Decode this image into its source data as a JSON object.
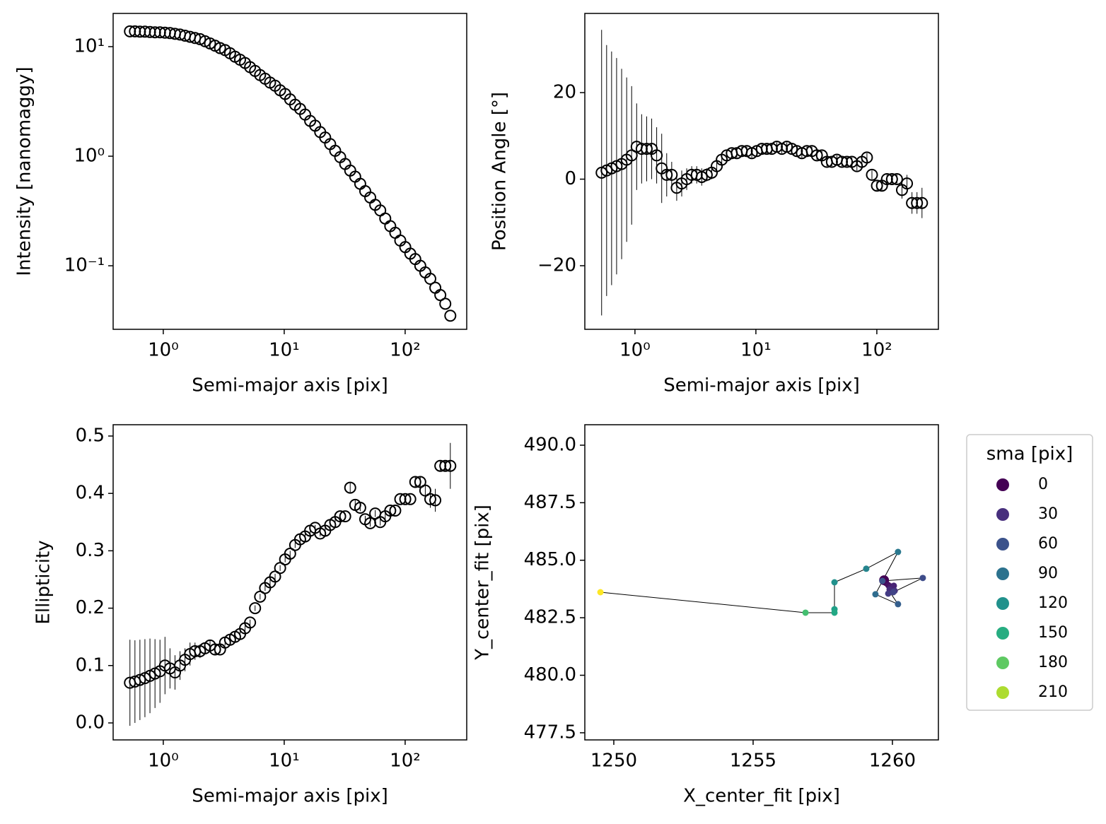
{
  "chart_data": [
    {
      "type": "errorbar",
      "xlabel": "Semi-major axis [pix]",
      "ylabel": "Intensity [nanomaggy]",
      "xscale": "log",
      "yscale": "log",
      "x": [
        0.53,
        0.583,
        0.641,
        0.705,
        0.776,
        0.854,
        0.939,
        1.033,
        1.136,
        1.25,
        1.375,
        1.512,
        1.664,
        1.83,
        2.013,
        2.214,
        2.436,
        2.679,
        2.947,
        3.242,
        3.566,
        3.923,
        4.315,
        4.747,
        5.221,
        5.743,
        6.318,
        6.95,
        7.645,
        8.409,
        9.25,
        10.175,
        11.193,
        12.312,
        13.543,
        14.898,
        16.387,
        18.026,
        19.829,
        21.812,
        23.993,
        26.392,
        29.032,
        31.935,
        35.128,
        38.641,
        42.505,
        46.756,
        51.431,
        56.575,
        62.232,
        68.455,
        75.301,
        82.831,
        91.114,
        100.225,
        110.248,
        121.273,
        133.4,
        146.74,
        161.414,
        177.555,
        195.311,
        214.842,
        236.326
      ],
      "values": [
        13.8,
        13.8,
        13.7,
        13.7,
        13.6,
        13.5,
        13.5,
        13.4,
        13.3,
        13.1,
        12.9,
        12.6,
        12.3,
        12.0,
        11.7,
        11.2,
        10.7,
        10.2,
        9.7,
        9.3,
        8.7,
        8.1,
        7.6,
        7.1,
        6.5,
        6.0,
        5.5,
        5.1,
        4.7,
        4.4,
        4.0,
        3.7,
        3.3,
        2.95,
        2.7,
        2.4,
        2.1,
        1.9,
        1.66,
        1.48,
        1.29,
        1.12,
        0.98,
        0.85,
        0.74,
        0.65,
        0.56,
        0.48,
        0.42,
        0.36,
        0.32,
        0.27,
        0.23,
        0.2,
        0.17,
        0.148,
        0.129,
        0.115,
        0.1,
        0.087,
        0.076,
        0.063,
        0.054,
        0.045,
        0.035
      ],
      "color": "#000000",
      "xlim": [
        0.385,
        323
      ],
      "ylim": [
        0.0263,
        20.1
      ],
      "xticks": [
        {
          "value": 1,
          "label": "10⁰"
        },
        {
          "value": 10,
          "label": "10¹"
        },
        {
          "value": 100,
          "label": "10²"
        }
      ],
      "yticks": [
        {
          "value": 0.1,
          "label": "10⁻¹"
        },
        {
          "value": 1,
          "label": "10⁰"
        },
        {
          "value": 10,
          "label": "10¹"
        }
      ]
    },
    {
      "type": "errorbar",
      "xlabel": "Semi-major axis [pix]",
      "ylabel": "Position Angle [°]",
      "xscale": "log",
      "yscale": "linear",
      "x": [
        0.53,
        0.583,
        0.641,
        0.705,
        0.776,
        0.854,
        0.939,
        1.033,
        1.136,
        1.25,
        1.375,
        1.512,
        1.664,
        1.83,
        2.013,
        2.214,
        2.436,
        2.679,
        2.947,
        3.242,
        3.566,
        3.923,
        4.315,
        4.747,
        5.221,
        5.743,
        6.318,
        6.95,
        7.645,
        8.409,
        9.25,
        10.175,
        11.193,
        12.312,
        13.543,
        14.898,
        16.387,
        18.026,
        19.829,
        21.812,
        23.993,
        26.392,
        29.032,
        31.935,
        35.128,
        38.641,
        42.505,
        46.756,
        51.431,
        56.575,
        62.232,
        68.455,
        75.301,
        82.831,
        91.114,
        100.225,
        110.248,
        121.273,
        133.4,
        146.74,
        161.414,
        177.555,
        195.311,
        214.842,
        236.326
      ],
      "values": [
        1.5,
        2,
        2.5,
        3,
        3.5,
        4.5,
        5.5,
        7.5,
        7,
        7,
        7,
        5.5,
        2.5,
        1,
        1,
        -2,
        -1,
        0,
        1,
        1,
        0.5,
        1,
        1.5,
        3,
        4.5,
        5.5,
        6,
        6,
        6.5,
        6.5,
        6,
        6.5,
        7,
        7,
        7,
        7.5,
        7,
        7.5,
        7,
        6.5,
        6,
        6.5,
        6.5,
        5.5,
        5.5,
        4,
        4,
        4.5,
        4,
        4,
        4,
        3,
        4,
        5,
        1,
        -1.5,
        -1.5,
        0,
        0,
        0,
        -2.5,
        -1,
        -5.5,
        -5.5,
        -5.5
      ],
      "errors": [
        33,
        29,
        27,
        25,
        22,
        19,
        16,
        10,
        8,
        7.5,
        7,
        6.5,
        8,
        5,
        3,
        3,
        3,
        2.5,
        2,
        2,
        2,
        1.5,
        1.5,
        1.5,
        1.5,
        1,
        1,
        1,
        1,
        1,
        1,
        1,
        1,
        1,
        1,
        1,
        1,
        1,
        1,
        1,
        1,
        1,
        1,
        1,
        1,
        1,
        1,
        1,
        1,
        1,
        1,
        1,
        1,
        1,
        1,
        1,
        1,
        1,
        1,
        1,
        2,
        2,
        2.5,
        2.5,
        3.5
      ],
      "color": "#000000",
      "xlim": [
        0.385,
        323
      ],
      "ylim": [
        -34.7,
        38.3
      ],
      "xticks": [
        {
          "value": 1,
          "label": "10⁰"
        },
        {
          "value": 10,
          "label": "10¹"
        },
        {
          "value": 100,
          "label": "10²"
        }
      ],
      "yticks": [
        {
          "value": -20,
          "label": "−20"
        },
        0,
        20
      ]
    },
    {
      "type": "errorbar",
      "xlabel": "Semi-major axis [pix]",
      "ylabel": "Ellipticity",
      "xscale": "log",
      "yscale": "linear",
      "x": [
        0.53,
        0.583,
        0.641,
        0.705,
        0.776,
        0.854,
        0.939,
        1.033,
        1.136,
        1.25,
        1.375,
        1.512,
        1.664,
        1.83,
        2.013,
        2.214,
        2.436,
        2.679,
        2.947,
        3.242,
        3.566,
        3.923,
        4.315,
        4.747,
        5.221,
        5.743,
        6.318,
        6.95,
        7.645,
        8.409,
        9.25,
        10.175,
        11.193,
        12.312,
        13.543,
        14.898,
        16.387,
        18.026,
        19.829,
        21.812,
        23.993,
        26.392,
        29.032,
        31.935,
        35.128,
        38.641,
        42.505,
        46.756,
        51.431,
        56.575,
        62.232,
        68.455,
        75.301,
        82.831,
        91.114,
        100.225,
        110.248,
        121.273,
        133.4,
        146.74,
        161.414,
        177.555,
        195.311,
        214.842,
        236.326
      ],
      "values": [
        0.07,
        0.072,
        0.075,
        0.078,
        0.082,
        0.086,
        0.09,
        0.1,
        0.095,
        0.088,
        0.1,
        0.11,
        0.12,
        0.125,
        0.125,
        0.13,
        0.135,
        0.128,
        0.128,
        0.14,
        0.145,
        0.15,
        0.155,
        0.165,
        0.175,
        0.2,
        0.22,
        0.235,
        0.245,
        0.255,
        0.27,
        0.285,
        0.295,
        0.31,
        0.32,
        0.325,
        0.335,
        0.34,
        0.33,
        0.335,
        0.345,
        0.35,
        0.36,
        0.36,
        0.41,
        0.38,
        0.375,
        0.355,
        0.348,
        0.365,
        0.35,
        0.36,
        0.37,
        0.37,
        0.39,
        0.39,
        0.39,
        0.42,
        0.42,
        0.405,
        0.39,
        0.388,
        0.448,
        0.448,
        0.448
      ],
      "errors": [
        0.075,
        0.072,
        0.07,
        0.068,
        0.065,
        0.06,
        0.055,
        0.05,
        0.035,
        0.03,
        0.025,
        0.02,
        0.02,
        0.015,
        0.012,
        0.01,
        0.01,
        0.008,
        0.006,
        0.005,
        0.005,
        0.005,
        0.005,
        0.005,
        0.005,
        0.005,
        0.005,
        0.005,
        0.005,
        0.005,
        0.005,
        0.005,
        0.005,
        0.005,
        0.005,
        0.005,
        0.005,
        0.005,
        0.005,
        0.005,
        0.005,
        0.005,
        0.005,
        0.005,
        0.01,
        0.008,
        0.006,
        0.006,
        0.006,
        0.006,
        0.006,
        0.006,
        0.006,
        0.006,
        0.006,
        0.006,
        0.006,
        0.008,
        0.008,
        0.01,
        0.015,
        0.02,
        0.01,
        0.01,
        0.04
      ],
      "color": "#000000",
      "xlim": [
        0.385,
        323
      ],
      "ylim": [
        -0.0296,
        0.5197
      ],
      "xticks": [
        {
          "value": 1,
          "label": "10⁰"
        },
        {
          "value": 10,
          "label": "10¹"
        },
        {
          "value": 100,
          "label": "10²"
        }
      ],
      "yticks": [
        {
          "value": 0,
          "label": "0.0"
        },
        0.1,
        0.2,
        0.3,
        0.4,
        0.5
      ]
    },
    {
      "type": "scatter",
      "xlabel": "X_center_fit [pix]",
      "ylabel": "Y_center_fit [pix]",
      "xscale": "linear",
      "yscale": "linear",
      "x": [
        1259.7,
        1259.77,
        1259.85,
        1259.95,
        1260.05,
        1259.9,
        1260.08,
        1259.85,
        1260.03,
        1261.09,
        1259.64,
        1260.2,
        1259.39,
        1260.2,
        1259.06,
        1257.92,
        1257.92,
        1257.92,
        1256.88,
        1249.52
      ],
      "values": [
        484.13,
        484.01,
        483.92,
        483.86,
        483.89,
        483.73,
        483.67,
        483.55,
        483.61,
        484.23,
        484.1,
        483.09,
        483.52,
        485.36,
        484.63,
        484.04,
        482.87,
        482.72,
        482.72,
        483.61
      ],
      "colors": [
        "#440154",
        "#46075a",
        "#471164",
        "#481a6c",
        "#482374",
        "#472c7a",
        "#46337f",
        "#443b84",
        "#414487",
        "#3e4c8a",
        "#3b528b",
        "#355f8d",
        "#2f6c8e",
        "#2a788e",
        "#25858e",
        "#21918c",
        "#1fa088",
        "#22a884",
        "#44bf70",
        "#fde725"
      ],
      "line_color": "#000000",
      "connect": true,
      "xlim": [
        1248.96,
        1261.65
      ],
      "ylim": [
        477.19,
        490.89
      ],
      "xticks": [
        1250,
        1255,
        1260
      ],
      "yticks": [
        477.5,
        {
          "value": 480,
          "label": "480.0"
        },
        482.5,
        {
          "value": 485,
          "label": "485.0"
        },
        487.5,
        {
          "value": 490,
          "label": "490.0"
        }
      ],
      "legend": {
        "title": "sma [pix]",
        "labels": [
          0,
          30,
          60,
          90,
          120,
          150,
          180,
          210
        ],
        "colors": [
          "#440154",
          "#472f7d",
          "#3b528b",
          "#2c728e",
          "#21918c",
          "#27ad81",
          "#5ec962",
          "#addc30"
        ]
      },
      "legend_position": "outside right"
    }
  ]
}
